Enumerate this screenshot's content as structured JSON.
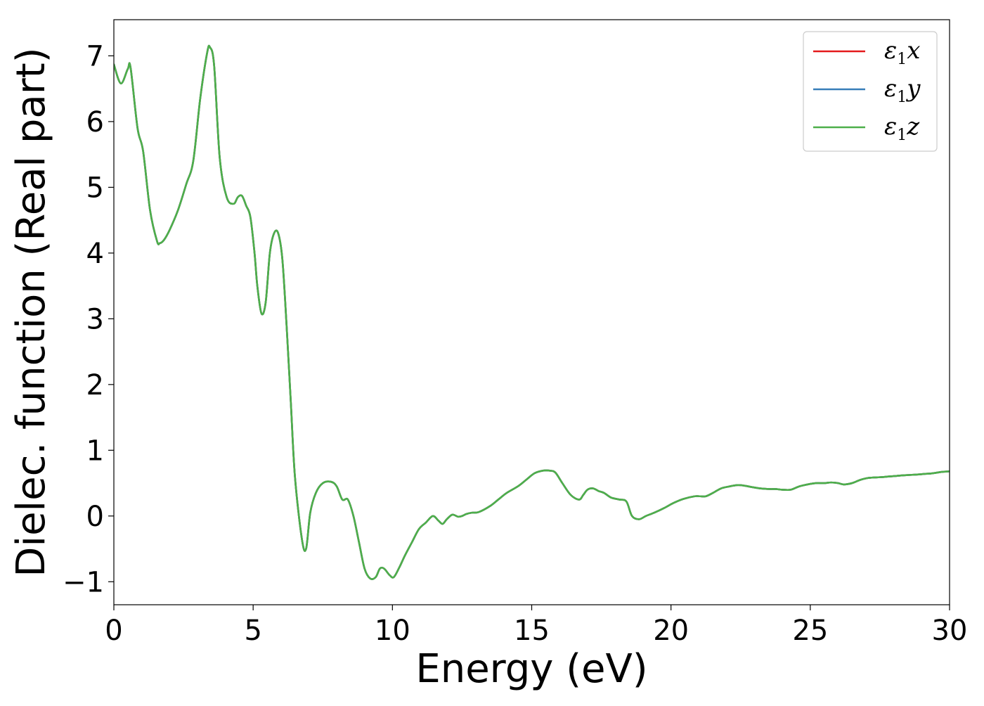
{
  "chart_data": {
    "type": "line",
    "xlabel": "Energy (eV)",
    "ylabel": "Dielec. function (Real part)",
    "xlim": [
      0,
      30
    ],
    "ylim": [
      -1.35,
      7.55
    ],
    "xticks": [
      0,
      5,
      10,
      15,
      20,
      25,
      30
    ],
    "xtick_labels": [
      "0",
      "5",
      "10",
      "15",
      "20",
      "25",
      "30"
    ],
    "yticks": [
      -1,
      0,
      1,
      2,
      3,
      4,
      5,
      6,
      7
    ],
    "ytick_labels": [
      "−1",
      "0",
      "1",
      "2",
      "3",
      "4",
      "5",
      "6",
      "7"
    ],
    "grid": false,
    "legend_position": "top-right",
    "series": [
      {
        "name": "ε1x",
        "legend_main": "ε",
        "legend_sub": "1",
        "legend_var": "x",
        "color": "#e41a1c",
        "x": [
          0,
          0.25,
          0.5,
          0.6,
          0.85,
          1.05,
          1.3,
          1.55,
          1.65,
          1.8,
          2.0,
          2.3,
          2.6,
          2.85,
          3.1,
          3.35,
          3.45,
          3.6,
          3.8,
          4.05,
          4.3,
          4.45,
          4.6,
          4.75,
          4.9,
          5.05,
          5.15,
          5.3,
          5.45,
          5.6,
          5.75,
          5.9,
          6.05,
          6.2,
          6.35,
          6.5,
          6.75,
          6.9,
          7.05,
          7.25,
          7.5,
          7.8,
          8.0,
          8.2,
          8.4,
          8.6,
          8.8,
          9.0,
          9.2,
          9.4,
          9.55,
          9.7,
          9.9,
          10.05,
          10.25,
          10.45,
          10.7,
          10.95,
          11.2,
          11.45,
          11.65,
          11.8,
          11.95,
          12.15,
          12.35,
          12.5,
          12.65,
          12.85,
          13.1,
          13.5,
          13.8,
          14.1,
          14.5,
          14.8,
          15.1,
          15.4,
          15.65,
          15.85,
          16.1,
          16.4,
          16.7,
          16.85,
          17.0,
          17.2,
          17.4,
          17.6,
          17.85,
          18.15,
          18.4,
          18.6,
          18.85,
          19.1,
          19.4,
          19.75,
          20.1,
          20.45,
          20.85,
          21.05,
          21.25,
          21.5,
          21.8,
          22.1,
          22.4,
          22.65,
          22.9,
          23.2,
          23.55,
          23.75,
          24.0,
          24.3,
          24.6,
          24.9,
          25.2,
          25.5,
          25.75,
          26.0,
          26.2,
          26.5,
          26.8,
          27.1,
          27.5,
          27.8,
          28.1,
          28.4,
          28.8,
          29.1,
          29.4,
          29.7,
          30.0
        ],
        "y": [
          6.87,
          6.58,
          6.8,
          6.82,
          5.9,
          5.55,
          4.65,
          4.18,
          4.15,
          4.2,
          4.35,
          4.65,
          5.05,
          5.4,
          6.35,
          7.05,
          7.13,
          6.85,
          5.45,
          4.85,
          4.75,
          4.85,
          4.87,
          4.72,
          4.55,
          4.0,
          3.5,
          3.08,
          3.25,
          4.0,
          4.3,
          4.3,
          3.9,
          2.9,
          1.75,
          0.6,
          -0.35,
          -0.5,
          0.05,
          0.35,
          0.5,
          0.52,
          0.45,
          0.25,
          0.25,
          0.0,
          -0.4,
          -0.8,
          -0.95,
          -0.93,
          -0.8,
          -0.8,
          -0.9,
          -0.93,
          -0.78,
          -0.6,
          -0.4,
          -0.2,
          -0.1,
          0.0,
          -0.07,
          -0.12,
          -0.05,
          0.02,
          -0.01,
          0.0,
          0.03,
          0.05,
          0.06,
          0.15,
          0.25,
          0.35,
          0.45,
          0.55,
          0.65,
          0.69,
          0.69,
          0.66,
          0.5,
          0.32,
          0.25,
          0.32,
          0.4,
          0.42,
          0.38,
          0.35,
          0.28,
          0.25,
          0.22,
          0.0,
          -0.05,
          0.0,
          0.05,
          0.12,
          0.2,
          0.26,
          0.3,
          0.3,
          0.3,
          0.35,
          0.42,
          0.45,
          0.47,
          0.46,
          0.44,
          0.42,
          0.41,
          0.41,
          0.4,
          0.4,
          0.45,
          0.48,
          0.5,
          0.5,
          0.51,
          0.5,
          0.48,
          0.5,
          0.55,
          0.58,
          0.59,
          0.6,
          0.61,
          0.62,
          0.63,
          0.64,
          0.65,
          0.67,
          0.68
        ]
      },
      {
        "name": "ε1y",
        "legend_main": "ε",
        "legend_sub": "1",
        "legend_var": "y",
        "color": "#377eb8",
        "x": [
          0,
          0.25,
          0.5,
          0.6,
          0.85,
          1.05,
          1.3,
          1.55,
          1.65,
          1.8,
          2.0,
          2.3,
          2.6,
          2.85,
          3.1,
          3.35,
          3.45,
          3.6,
          3.8,
          4.05,
          4.3,
          4.45,
          4.6,
          4.75,
          4.9,
          5.05,
          5.15,
          5.3,
          5.45,
          5.6,
          5.75,
          5.9,
          6.05,
          6.2,
          6.35,
          6.5,
          6.75,
          6.9,
          7.05,
          7.25,
          7.5,
          7.8,
          8.0,
          8.2,
          8.4,
          8.6,
          8.8,
          9.0,
          9.2,
          9.4,
          9.55,
          9.7,
          9.9,
          10.05,
          10.25,
          10.45,
          10.7,
          10.95,
          11.2,
          11.45,
          11.65,
          11.8,
          11.95,
          12.15,
          12.35,
          12.5,
          12.65,
          12.85,
          13.1,
          13.5,
          13.8,
          14.1,
          14.5,
          14.8,
          15.1,
          15.4,
          15.65,
          15.85,
          16.1,
          16.4,
          16.7,
          16.85,
          17.0,
          17.2,
          17.4,
          17.6,
          17.85,
          18.15,
          18.4,
          18.6,
          18.85,
          19.1,
          19.4,
          19.75,
          20.1,
          20.45,
          20.85,
          21.05,
          21.25,
          21.5,
          21.8,
          22.1,
          22.4,
          22.65,
          22.9,
          23.2,
          23.55,
          23.75,
          24.0,
          24.3,
          24.6,
          24.9,
          25.2,
          25.5,
          25.75,
          26.0,
          26.2,
          26.5,
          26.8,
          27.1,
          27.5,
          27.8,
          28.1,
          28.4,
          28.8,
          29.1,
          29.4,
          29.7,
          30.0
        ],
        "y": [
          6.87,
          6.58,
          6.8,
          6.82,
          5.9,
          5.55,
          4.65,
          4.18,
          4.15,
          4.2,
          4.35,
          4.65,
          5.05,
          5.4,
          6.35,
          7.05,
          7.13,
          6.85,
          5.45,
          4.85,
          4.75,
          4.85,
          4.87,
          4.72,
          4.55,
          4.0,
          3.5,
          3.08,
          3.25,
          4.0,
          4.3,
          4.3,
          3.9,
          2.9,
          1.75,
          0.6,
          -0.35,
          -0.5,
          0.05,
          0.35,
          0.5,
          0.52,
          0.45,
          0.25,
          0.25,
          0.0,
          -0.4,
          -0.8,
          -0.95,
          -0.93,
          -0.8,
          -0.8,
          -0.9,
          -0.93,
          -0.78,
          -0.6,
          -0.4,
          -0.2,
          -0.1,
          0.0,
          -0.07,
          -0.12,
          -0.05,
          0.02,
          -0.01,
          0.0,
          0.03,
          0.05,
          0.06,
          0.15,
          0.25,
          0.35,
          0.45,
          0.55,
          0.65,
          0.69,
          0.69,
          0.66,
          0.5,
          0.32,
          0.25,
          0.32,
          0.4,
          0.42,
          0.38,
          0.35,
          0.28,
          0.25,
          0.22,
          0.0,
          -0.05,
          0.0,
          0.05,
          0.12,
          0.2,
          0.26,
          0.3,
          0.3,
          0.3,
          0.35,
          0.42,
          0.45,
          0.47,
          0.46,
          0.44,
          0.42,
          0.41,
          0.41,
          0.4,
          0.4,
          0.45,
          0.48,
          0.5,
          0.5,
          0.51,
          0.5,
          0.48,
          0.5,
          0.55,
          0.58,
          0.59,
          0.6,
          0.61,
          0.62,
          0.63,
          0.64,
          0.65,
          0.67,
          0.68
        ]
      },
      {
        "name": "ε1z",
        "legend_main": "ε",
        "legend_sub": "1",
        "legend_var": "z",
        "color": "#4daf4a",
        "x": [
          0,
          0.25,
          0.5,
          0.6,
          0.85,
          1.05,
          1.3,
          1.55,
          1.65,
          1.8,
          2.0,
          2.3,
          2.6,
          2.85,
          3.1,
          3.35,
          3.45,
          3.6,
          3.8,
          4.05,
          4.3,
          4.45,
          4.6,
          4.75,
          4.9,
          5.05,
          5.15,
          5.3,
          5.45,
          5.6,
          5.75,
          5.9,
          6.05,
          6.2,
          6.35,
          6.5,
          6.75,
          6.9,
          7.05,
          7.25,
          7.5,
          7.8,
          8.0,
          8.2,
          8.4,
          8.6,
          8.8,
          9.0,
          9.2,
          9.4,
          9.55,
          9.7,
          9.9,
          10.05,
          10.25,
          10.45,
          10.7,
          10.95,
          11.2,
          11.45,
          11.65,
          11.8,
          11.95,
          12.15,
          12.35,
          12.5,
          12.65,
          12.85,
          13.1,
          13.5,
          13.8,
          14.1,
          14.5,
          14.8,
          15.1,
          15.4,
          15.65,
          15.85,
          16.1,
          16.4,
          16.7,
          16.85,
          17.0,
          17.2,
          17.4,
          17.6,
          17.85,
          18.15,
          18.4,
          18.6,
          18.85,
          19.1,
          19.4,
          19.75,
          20.1,
          20.45,
          20.85,
          21.05,
          21.25,
          21.5,
          21.8,
          22.1,
          22.4,
          22.65,
          22.9,
          23.2,
          23.55,
          23.75,
          24.0,
          24.3,
          24.6,
          24.9,
          25.2,
          25.5,
          25.75,
          26.0,
          26.2,
          26.5,
          26.8,
          27.1,
          27.5,
          27.8,
          28.1,
          28.4,
          28.8,
          29.1,
          29.4,
          29.7,
          30.0
        ],
        "y": [
          6.87,
          6.58,
          6.8,
          6.82,
          5.9,
          5.55,
          4.65,
          4.18,
          4.15,
          4.2,
          4.35,
          4.65,
          5.05,
          5.4,
          6.35,
          7.05,
          7.13,
          6.85,
          5.45,
          4.85,
          4.75,
          4.85,
          4.87,
          4.72,
          4.55,
          4.0,
          3.5,
          3.08,
          3.25,
          4.0,
          4.3,
          4.3,
          3.9,
          2.9,
          1.75,
          0.6,
          -0.35,
          -0.5,
          0.05,
          0.35,
          0.5,
          0.52,
          0.45,
          0.25,
          0.25,
          0.0,
          -0.4,
          -0.8,
          -0.95,
          -0.93,
          -0.8,
          -0.8,
          -0.9,
          -0.93,
          -0.78,
          -0.6,
          -0.4,
          -0.2,
          -0.1,
          0.0,
          -0.07,
          -0.12,
          -0.05,
          0.02,
          -0.01,
          0.0,
          0.03,
          0.05,
          0.06,
          0.15,
          0.25,
          0.35,
          0.45,
          0.55,
          0.65,
          0.69,
          0.69,
          0.66,
          0.5,
          0.32,
          0.25,
          0.32,
          0.4,
          0.42,
          0.38,
          0.35,
          0.28,
          0.25,
          0.22,
          0.0,
          -0.05,
          0.0,
          0.05,
          0.12,
          0.2,
          0.26,
          0.3,
          0.3,
          0.3,
          0.35,
          0.42,
          0.45,
          0.47,
          0.46,
          0.44,
          0.42,
          0.41,
          0.41,
          0.4,
          0.4,
          0.45,
          0.48,
          0.5,
          0.5,
          0.51,
          0.5,
          0.48,
          0.5,
          0.55,
          0.58,
          0.59,
          0.6,
          0.61,
          0.62,
          0.63,
          0.64,
          0.65,
          0.67,
          0.68
        ]
      }
    ]
  }
}
